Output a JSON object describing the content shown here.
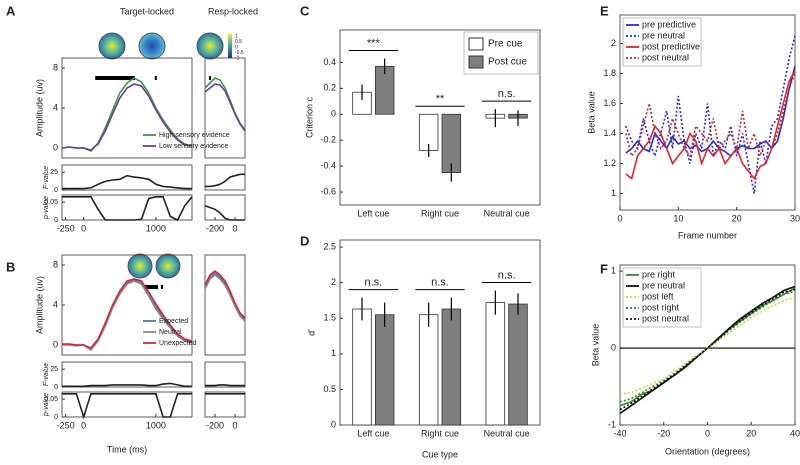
{
  "chart_data": [
    {
      "type": "line",
      "label": "A",
      "title": "Target-locked",
      "xlim": [
        -300,
        1500
      ],
      "ylim": [
        -1,
        9
      ],
      "yticks": [
        0,
        4,
        8
      ],
      "ylabel": "Amplitude (uv)",
      "legend": "lower right",
      "colorbar_ticks": [
        1,
        0.5,
        0,
        -0.5,
        -1
      ],
      "sig": [
        [
          160,
          710
        ],
        [
          985,
          1000
        ]
      ],
      "x": [
        -300,
        -200,
        -100,
        0,
        100,
        200,
        300,
        400,
        500,
        600,
        700,
        800,
        900,
        1000,
        1100,
        1200,
        1300,
        1400,
        1500
      ],
      "series": [
        {
          "name": "High sensory evidence",
          "color": "#3f9a4a",
          "values": [
            0,
            0.1,
            0,
            0,
            -0.3,
            0.5,
            2,
            3.8,
            5.5,
            6.5,
            7,
            6.6,
            5.5,
            4,
            2.8,
            1.8,
            0.9,
            0.4,
            0.2
          ]
        },
        {
          "name": "Low sensory evidence",
          "color": "#6a3d9a",
          "values": [
            0,
            0.1,
            0,
            0,
            -0.2,
            0.4,
            1.7,
            3.4,
            5,
            6,
            6.4,
            6.2,
            5.2,
            3.8,
            2.6,
            1.6,
            0.8,
            0.3,
            0.2
          ]
        }
      ]
    },
    {
      "type": "line",
      "title": "Resp-locked",
      "xlim": [
        -300,
        100
      ],
      "ylim": [
        -1,
        9
      ],
      "sig": [
        [
          -260,
          -240
        ]
      ],
      "x": [
        -300,
        -250,
        -200,
        -150,
        -100,
        -50,
        0,
        50,
        100
      ],
      "series": [
        {
          "color": "#3f9a4a",
          "values": [
            6,
            6.5,
            7,
            6.8,
            6,
            4.8,
            3.5,
            2.5,
            1.8
          ]
        },
        {
          "color": "#6a3d9a",
          "values": [
            5.6,
            6,
            6.4,
            6.3,
            5.7,
            4.6,
            3.4,
            2.4,
            1.7
          ]
        }
      ]
    },
    {
      "type": "line",
      "xlim": [
        -300,
        1500
      ],
      "ylim": [
        0,
        35
      ],
      "yticks": [
        0,
        25
      ],
      "ylabel": "F-value",
      "x": [
        -300,
        -200,
        -100,
        0,
        100,
        200,
        300,
        400,
        500,
        600,
        700,
        800,
        900,
        1000,
        1100,
        1200,
        1300,
        1400,
        1500
      ],
      "series": [
        {
          "color": "#222222",
          "values": [
            2,
            2,
            2,
            2,
            3,
            8,
            12,
            14,
            15,
            20,
            18,
            17,
            15,
            8,
            5,
            4,
            3,
            2,
            2
          ]
        }
      ]
    },
    {
      "type": "line",
      "xlim": [
        -300,
        1500
      ],
      "ylim": [
        0,
        0.07
      ],
      "yticks": [
        0,
        0.05
      ],
      "xticks": [
        -250,
        0,
        1000
      ],
      "ylabel": "p-value",
      "x": [
        -300,
        -200,
        -100,
        0,
        100,
        200,
        300,
        400,
        500,
        600,
        700,
        800,
        900,
        1000,
        1100,
        1200,
        1300,
        1400,
        1500
      ],
      "series": [
        {
          "color": "#222222",
          "values": [
            0.065,
            0.065,
            0.065,
            0.065,
            0.065,
            0.03,
            0,
            0,
            0,
            0,
            0,
            0.002,
            0.06,
            0.065,
            0.065,
            0.01,
            0,
            0.04,
            0.065
          ]
        }
      ]
    },
    {
      "type": "line",
      "xlim": [
        -300,
        100
      ],
      "ylim": [
        0,
        35
      ],
      "x": [
        -300,
        -250,
        -200,
        -150,
        -100,
        -50,
        0,
        50,
        100
      ],
      "series": [
        {
          "color": "#222222",
          "values": [
            5,
            5,
            6,
            8,
            12,
            18,
            20,
            22,
            22
          ]
        }
      ]
    },
    {
      "type": "line",
      "xlim": [
        -300,
        100
      ],
      "ylim": [
        0,
        0.07
      ],
      "xticks": [
        -200,
        0
      ],
      "x": [
        -300,
        -250,
        -200,
        -150,
        -100,
        -50,
        0,
        50,
        100
      ],
      "series": [
        {
          "color": "#222222",
          "values": [
            0.04,
            0.035,
            0.03,
            0.02,
            0.005,
            0,
            0,
            0,
            0
          ]
        }
      ]
    },
    {
      "type": "line",
      "label": "B",
      "xlim": [
        -300,
        1500
      ],
      "ylim": [
        -1,
        9
      ],
      "yticks": [
        0,
        4,
        8
      ],
      "ylabel": "Amplitude (uv)",
      "legend": "lower right",
      "sig": [
        [
          850,
          1030
        ],
        [
          1070,
          1090
        ]
      ],
      "x": [
        -300,
        -200,
        -100,
        0,
        100,
        200,
        300,
        400,
        500,
        600,
        700,
        800,
        900,
        1000,
        1100,
        1200,
        1300,
        1400,
        1500
      ],
      "series": [
        {
          "name": "Expected",
          "color": "#4a78b5",
          "values": [
            0,
            0.1,
            0,
            0,
            -0.4,
            0.5,
            2,
            3.8,
            5.2,
            6.2,
            6.5,
            6.2,
            5,
            3.8,
            2.8,
            1.8,
            1,
            0.5,
            0.3
          ]
        },
        {
          "name": "Neutral",
          "color": "#888888",
          "values": [
            0,
            0,
            -0.1,
            0,
            -0.5,
            0.4,
            1.9,
            3.7,
            5.1,
            6.1,
            6.4,
            6.1,
            4.9,
            3.6,
            2.6,
            1.7,
            0.9,
            0.4,
            0.2
          ]
        },
        {
          "name": "Unexpected",
          "color": "#d8243a",
          "values": [
            0.1,
            0.1,
            0,
            0,
            -0.3,
            0.6,
            2.2,
            4,
            5.4,
            6.4,
            6.6,
            6.4,
            5.3,
            4.1,
            3,
            2,
            1.1,
            0.6,
            0.4
          ]
        }
      ]
    },
    {
      "type": "line",
      "xlim": [
        -300,
        100
      ],
      "ylim": [
        -1,
        9
      ],
      "x": [
        -300,
        -250,
        -200,
        -150,
        -100,
        -50,
        0,
        50,
        100
      ],
      "series": [
        {
          "color": "#4a78b5",
          "values": [
            5.8,
            6.8,
            7.2,
            6.8,
            6.2,
            5.2,
            4,
            3,
            2.5
          ]
        },
        {
          "color": "#888888",
          "values": [
            5.6,
            6.6,
            7,
            6.6,
            6,
            5,
            3.9,
            2.9,
            2.4
          ]
        },
        {
          "color": "#d8243a",
          "values": [
            6,
            7,
            7.4,
            7,
            6.4,
            5.4,
            4.2,
            3.2,
            2.7
          ]
        }
      ]
    },
    {
      "type": "line",
      "xlim": [
        -300,
        1500
      ],
      "ylim": [
        0,
        35
      ],
      "yticks": [
        0,
        25
      ],
      "ylabel": "F-value",
      "x": [
        -300,
        -200,
        -100,
        0,
        100,
        200,
        300,
        400,
        500,
        600,
        700,
        800,
        900,
        1000,
        1100,
        1200,
        1300,
        1400,
        1500
      ],
      "series": [
        {
          "color": "#222222",
          "values": [
            1,
            1,
            1,
            1,
            2,
            2,
            2,
            3,
            3,
            3,
            3,
            3,
            2,
            2,
            4,
            5,
            3,
            1,
            1
          ]
        }
      ]
    },
    {
      "type": "line",
      "xlim": [
        -300,
        1500
      ],
      "ylim": [
        0,
        0.07
      ],
      "yticks": [
        0,
        0.05
      ],
      "xticks": [
        -250,
        0,
        1000
      ],
      "ylabel": "p-value",
      "xlabel": "Time (ms)",
      "x": [
        -300,
        -200,
        -100,
        0,
        100,
        200,
        300,
        400,
        500,
        600,
        700,
        800,
        900,
        1000,
        1100,
        1200,
        1300,
        1400,
        1500
      ],
      "series": [
        {
          "color": "#222222",
          "values": [
            0.065,
            0.065,
            0.065,
            0,
            0.065,
            0.065,
            0.065,
            0.065,
            0.065,
            0.065,
            0.065,
            0.065,
            0.065,
            0.065,
            0,
            0,
            0.065,
            0.065,
            0.065
          ]
        }
      ]
    },
    {
      "type": "line",
      "xlim": [
        -300,
        100
      ],
      "ylim": [
        0,
        35
      ],
      "x": [
        -300,
        -250,
        -200,
        -150,
        -100,
        -50,
        0,
        50,
        100
      ],
      "series": [
        {
          "color": "#222222",
          "values": [
            2,
            2,
            2,
            3,
            3,
            2,
            2,
            2,
            2
          ]
        }
      ]
    },
    {
      "type": "line",
      "xlim": [
        -300,
        100
      ],
      "ylim": [
        0,
        0.07
      ],
      "xticks": [
        -200,
        0
      ],
      "x": [
        -300,
        -250,
        -200,
        -150,
        -100,
        -50,
        0,
        50,
        100
      ],
      "series": [
        {
          "color": "#222222",
          "values": [
            0.065,
            0.065,
            0.065,
            0.065,
            0.065,
            0.065,
            0.065,
            0.065,
            0.065
          ]
        }
      ]
    },
    {
      "type": "bar",
      "label": "C",
      "ylabel": "Criterion c",
      "ylim": [
        -0.7,
        0.65
      ],
      "yticks": [
        0.4,
        0.2,
        0,
        -0.2,
        -0.4,
        -0.6
      ],
      "legend": "upper right",
      "categories": [
        "Left cue",
        "Right cue",
        "Neutral cue"
      ],
      "annotations": [
        "***",
        "**",
        "n.s."
      ],
      "series": [
        {
          "name": "Pre cue",
          "color": "#ffffff",
          "values": [
            0.17,
            -0.28,
            -0.03
          ],
          "errors": [
            0.06,
            0.05,
            0.07
          ]
        },
        {
          "name": "Post cue",
          "color": "#7f7f7f",
          "values": [
            0.37,
            -0.45,
            -0.03
          ],
          "errors": [
            0.06,
            0.07,
            0.06
          ]
        }
      ]
    },
    {
      "type": "bar",
      "label": "D",
      "ylabel": "d'",
      "xlabel": "Cue type",
      "ylim": [
        0,
        2.6
      ],
      "yticks": [
        0,
        0.5,
        1,
        1.5,
        2,
        2.5
      ],
      "categories": [
        "Left cue",
        "Right cue",
        "Neutral cue"
      ],
      "annotations": [
        "n.s.",
        "n.s.",
        "n.s."
      ],
      "series": [
        {
          "color": "#ffffff",
          "values": [
            1.63,
            1.55,
            1.72
          ],
          "errors": [
            0.16,
            0.17,
            0.17
          ]
        },
        {
          "color": "#7f7f7f",
          "values": [
            1.55,
            1.63,
            1.7
          ],
          "errors": [
            0.17,
            0.16,
            0.15
          ]
        }
      ]
    },
    {
      "type": "line",
      "label": "E",
      "xlabel": "Frame number",
      "ylabel": "Beta value",
      "xlim": [
        0,
        30
      ],
      "ylim": [
        0.89,
        2.19
      ],
      "xticks": [
        0,
        10,
        20,
        30
      ],
      "yticks": [
        1,
        1.2,
        1.4,
        1.6,
        1.8,
        2
      ],
      "legend": "upper left",
      "x": [
        1,
        2,
        3,
        4,
        5,
        6,
        7,
        8,
        9,
        10,
        11,
        12,
        13,
        14,
        15,
        16,
        17,
        18,
        19,
        20,
        21,
        22,
        23,
        24,
        25,
        26,
        27,
        28,
        29,
        30
      ],
      "series": [
        {
          "name": "pre predictive",
          "color": "#2b2bd6",
          "values": [
            1.27,
            1.3,
            1.35,
            1.3,
            1.28,
            1.4,
            1.35,
            1.3,
            1.38,
            1.33,
            1.35,
            1.3,
            1.32,
            1.28,
            1.3,
            1.35,
            1.3,
            1.28,
            1.25,
            1.3,
            1.32,
            1.3,
            1.3,
            1.33,
            1.35,
            1.3,
            1.35,
            1.5,
            1.7,
            1.85
          ]
        },
        {
          "name": "pre neutral",
          "color": "#2b2bd6",
          "dash": "dotted",
          "values": [
            1.45,
            1.35,
            1.3,
            1.5,
            1.35,
            1.25,
            1.4,
            1.55,
            1.3,
            1.65,
            1.35,
            1.2,
            1.4,
            1.3,
            1.6,
            1.25,
            1.35,
            1.3,
            1.45,
            1.25,
            1.4,
            1.2,
            1.0,
            1.35,
            1.2,
            1.45,
            1.5,
            1.7,
            1.9,
            2.05
          ]
        },
        {
          "name": "post predictive",
          "color": "#e0262b",
          "values": [
            1.13,
            1.1,
            1.25,
            1.3,
            1.35,
            1.45,
            1.4,
            1.3,
            1.2,
            1.25,
            1.3,
            1.4,
            1.35,
            1.2,
            1.3,
            1.25,
            1.3,
            1.2,
            1.25,
            1.3,
            1.2,
            1.15,
            1.1,
            1.18,
            1.2,
            1.3,
            1.45,
            1.6,
            1.75,
            1.82
          ]
        },
        {
          "name": "post neutral",
          "color": "#b03030",
          "dash": "dotted",
          "values": [
            1.4,
            1.25,
            1.3,
            1.45,
            1.6,
            1.4,
            1.3,
            1.35,
            1.5,
            1.4,
            1.3,
            1.25,
            1.45,
            1.4,
            1.35,
            1.5,
            1.3,
            1.35,
            1.4,
            1.3,
            1.55,
            1.3,
            1.4,
            1.25,
            1.35,
            1.3,
            1.4,
            1.55,
            1.7,
            1.8
          ]
        }
      ]
    },
    {
      "type": "line",
      "label": "F",
      "xlabel": "Orientation (degrees)",
      "ylabel": "Beta value",
      "xlim": [
        -40,
        40
      ],
      "ylim": [
        -1,
        1.08
      ],
      "xticks": [
        -40,
        -20,
        0,
        20,
        40
      ],
      "yticks": [
        -1,
        0,
        1
      ],
      "legend": "upper left",
      "zero_line": true,
      "x": [
        -40,
        -35,
        -30,
        -25,
        -20,
        -15,
        -10,
        -5,
        0,
        5,
        10,
        15,
        20,
        25,
        30,
        35,
        40
      ],
      "series": [
        {
          "name": "pre right",
          "color": "#2e8b2e",
          "values": [
            -0.75,
            -0.7,
            -0.6,
            -0.55,
            -0.45,
            -0.35,
            -0.25,
            -0.12,
            0,
            0.12,
            0.25,
            0.35,
            0.45,
            0.55,
            0.62,
            0.7,
            0.78
          ]
        },
        {
          "name": "pre neutral",
          "color": "#111111",
          "values": [
            -0.85,
            -0.75,
            -0.65,
            -0.55,
            -0.45,
            -0.35,
            -0.24,
            -0.12,
            0,
            0.13,
            0.26,
            0.38,
            0.48,
            0.58,
            0.66,
            0.75,
            0.8
          ]
        },
        {
          "name": "post left",
          "color": "#d4d44a",
          "dash": "dotted",
          "values": [
            -0.6,
            -0.58,
            -0.52,
            -0.46,
            -0.4,
            -0.3,
            -0.2,
            -0.1,
            0,
            0.1,
            0.2,
            0.3,
            0.4,
            0.48,
            0.55,
            0.62,
            0.66
          ]
        },
        {
          "name": "post right",
          "color": "#2e8b2e",
          "dash": "dotted",
          "values": [
            -0.7,
            -0.66,
            -0.58,
            -0.5,
            -0.42,
            -0.33,
            -0.22,
            -0.11,
            0,
            0.11,
            0.23,
            0.34,
            0.44,
            0.53,
            0.62,
            0.7,
            0.74
          ]
        },
        {
          "name": "post neutral",
          "color": "#111111",
          "dash": "dotted",
          "values": [
            -0.8,
            -0.72,
            -0.63,
            -0.53,
            -0.44,
            -0.34,
            -0.23,
            -0.12,
            0,
            0.12,
            0.25,
            0.36,
            0.46,
            0.56,
            0.64,
            0.73,
            0.76
          ]
        }
      ]
    }
  ]
}
